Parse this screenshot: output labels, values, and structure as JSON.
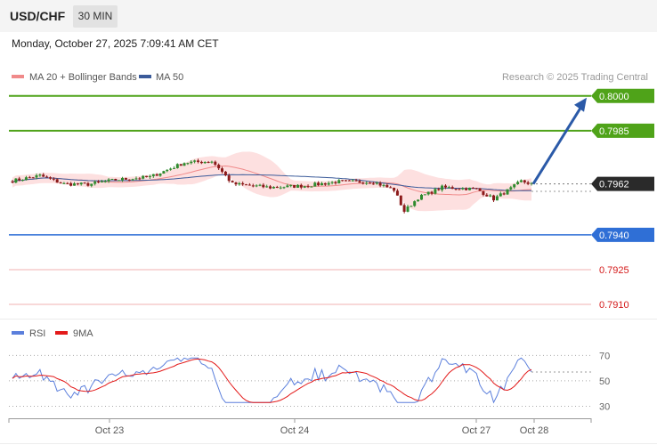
{
  "header": {
    "symbol": "USD/CHF",
    "timeframe": "30 MIN",
    "datetime": "Monday, October 27, 2025 7:09:41 AM CET"
  },
  "colors": {
    "ma20": "#f08a8a",
    "ma50": "#3b5b9a",
    "bollinger_fill": "#fde0e0",
    "bull": "#2e8b2e",
    "bear": "#8b1a1a",
    "resistance": "#4fa319",
    "support": "#2f6fd6",
    "target": "#e05a5a",
    "arrow": "#2b5aa8",
    "rsi": "#5b7fdc",
    "rsi_ma": "#e31a1a"
  },
  "chart_data": [
    {
      "type": "candlestick",
      "title": "USD/CHF",
      "legend": [
        "MA 20 + Bollinger Bands",
        "MA 50"
      ],
      "credit": "Research © 2025 Trading Central",
      "legend_placement": "top-left",
      "ylim": [
        0.7905,
        0.8003
      ],
      "x_labels": [
        "Oct 23",
        "Oct 24",
        "Oct 27",
        "Oct 28"
      ],
      "last_price": "0.7962",
      "levels": [
        {
          "label": "0.8000",
          "value": 0.8,
          "kind": "resistance"
        },
        {
          "label": "0.7985",
          "value": 0.7985,
          "kind": "resistance"
        },
        {
          "label": "0.7962",
          "value": 0.7962,
          "kind": "current"
        },
        {
          "label": "0.7940",
          "value": 0.794,
          "kind": "support"
        },
        {
          "label": "0.7925",
          "value": 0.7925,
          "kind": "target"
        },
        {
          "label": "0.7910",
          "value": 0.791,
          "kind": "target"
        }
      ],
      "projection": {
        "from": 0.7962,
        "to": 0.8
      }
    },
    {
      "type": "line",
      "legend": [
        "RSI",
        "9MA"
      ],
      "ylim": [
        24,
        78
      ],
      "y_ticks": [
        30,
        50,
        70
      ],
      "rsi_last": 57
    }
  ]
}
